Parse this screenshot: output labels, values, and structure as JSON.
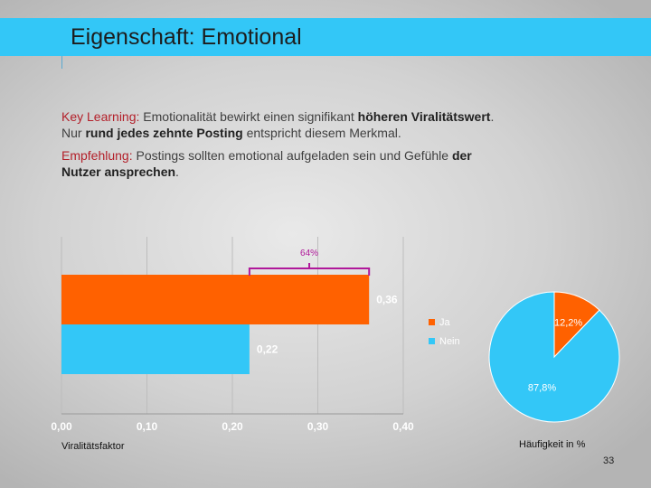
{
  "header": {
    "title": "Eigenschaft: Emotional"
  },
  "para1": {
    "label": "Key Learning:",
    "t1": " Emotionalität bewirkt einen signifikant ",
    "b1": "höheren Viralitätswert",
    "t2": ".",
    "t3": "Nur ",
    "b2": "rund jedes zehnte Posting",
    "t4": " entspricht diesem Merkmal."
  },
  "para2": {
    "label": "Empfehlung:",
    "t1": " Postings sollten emotional aufgeladen sein und Gefühle ",
    "b1": "der",
    "b2": "Nutzer ansprechen",
    "t2": "."
  },
  "bar_axis_title": "Viralitätsfaktor",
  "pie_axis_title": "Häufigkeit in %",
  "page_number": "33",
  "colors": {
    "accent": "#33c7f7",
    "orange": "#ff6100",
    "blue": "#33c7f7",
    "label_red": "#b3202a"
  },
  "chart_data": [
    {
      "type": "bar",
      "orientation": "horizontal",
      "categories": [
        "Ja",
        "Nein"
      ],
      "values": [
        0.36,
        0.22
      ],
      "value_labels": [
        "0,36",
        "0,22"
      ],
      "xlim": [
        0,
        0.4
      ],
      "ticks": [
        0,
        0.1,
        0.2,
        0.3,
        0.4
      ],
      "tick_labels": [
        "0,00",
        "0,10",
        "0,20",
        "0,30",
        "0,40"
      ],
      "annotation": "64%",
      "xlabel": "Viralitätsfaktor"
    },
    {
      "type": "pie",
      "labels": [
        "Ja",
        "Nein"
      ],
      "values": [
        12.2,
        87.8
      ],
      "value_labels": [
        "12,2%",
        "87,8%"
      ],
      "legend": [
        "Ja",
        "Nein"
      ],
      "legend_position": "left",
      "xlabel": "Häufigkeit in %"
    }
  ]
}
